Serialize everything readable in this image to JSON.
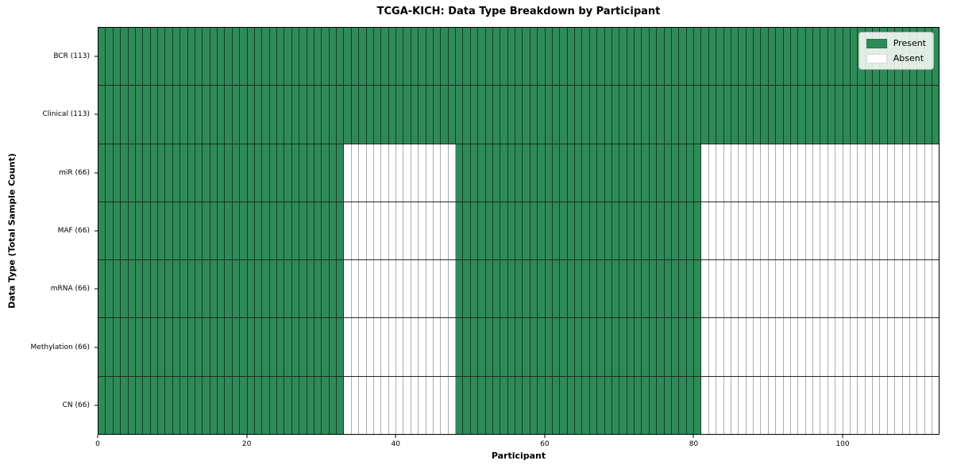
{
  "chart_data": {
    "type": "heatmap",
    "title": "TCGA-KICH: Data Type Breakdown by Participant",
    "xlabel": "Participant",
    "ylabel": "Data Type (Total Sample Count)",
    "n_participants": 113,
    "x_ticks": [
      0,
      20,
      40,
      60,
      80,
      100
    ],
    "xlim": [
      0,
      113
    ],
    "grid": true,
    "legend_position": "upper right",
    "legend": [
      {
        "label": "Present",
        "color": "#2e8b57"
      },
      {
        "label": "Absent",
        "color": "#ffffff"
      }
    ],
    "rows": [
      {
        "label": "BCR (113)",
        "total_samples": 113,
        "present_ranges": [
          [
            0,
            113
          ]
        ]
      },
      {
        "label": "Clinical (113)",
        "total_samples": 113,
        "present_ranges": [
          [
            0,
            113
          ]
        ]
      },
      {
        "label": "miR (66)",
        "total_samples": 66,
        "present_ranges": [
          [
            0,
            33
          ],
          [
            48,
            81
          ]
        ]
      },
      {
        "label": "MAF (66)",
        "total_samples": 66,
        "present_ranges": [
          [
            0,
            33
          ],
          [
            48,
            81
          ]
        ]
      },
      {
        "label": "mRNA (66)",
        "total_samples": 66,
        "present_ranges": [
          [
            0,
            33
          ],
          [
            48,
            81
          ]
        ]
      },
      {
        "label": "Methylation (66)",
        "total_samples": 66,
        "present_ranges": [
          [
            0,
            33
          ],
          [
            48,
            81
          ]
        ]
      },
      {
        "label": "CN (66)",
        "total_samples": 66,
        "present_ranges": [
          [
            0,
            33
          ],
          [
            48,
            81
          ]
        ]
      }
    ]
  }
}
